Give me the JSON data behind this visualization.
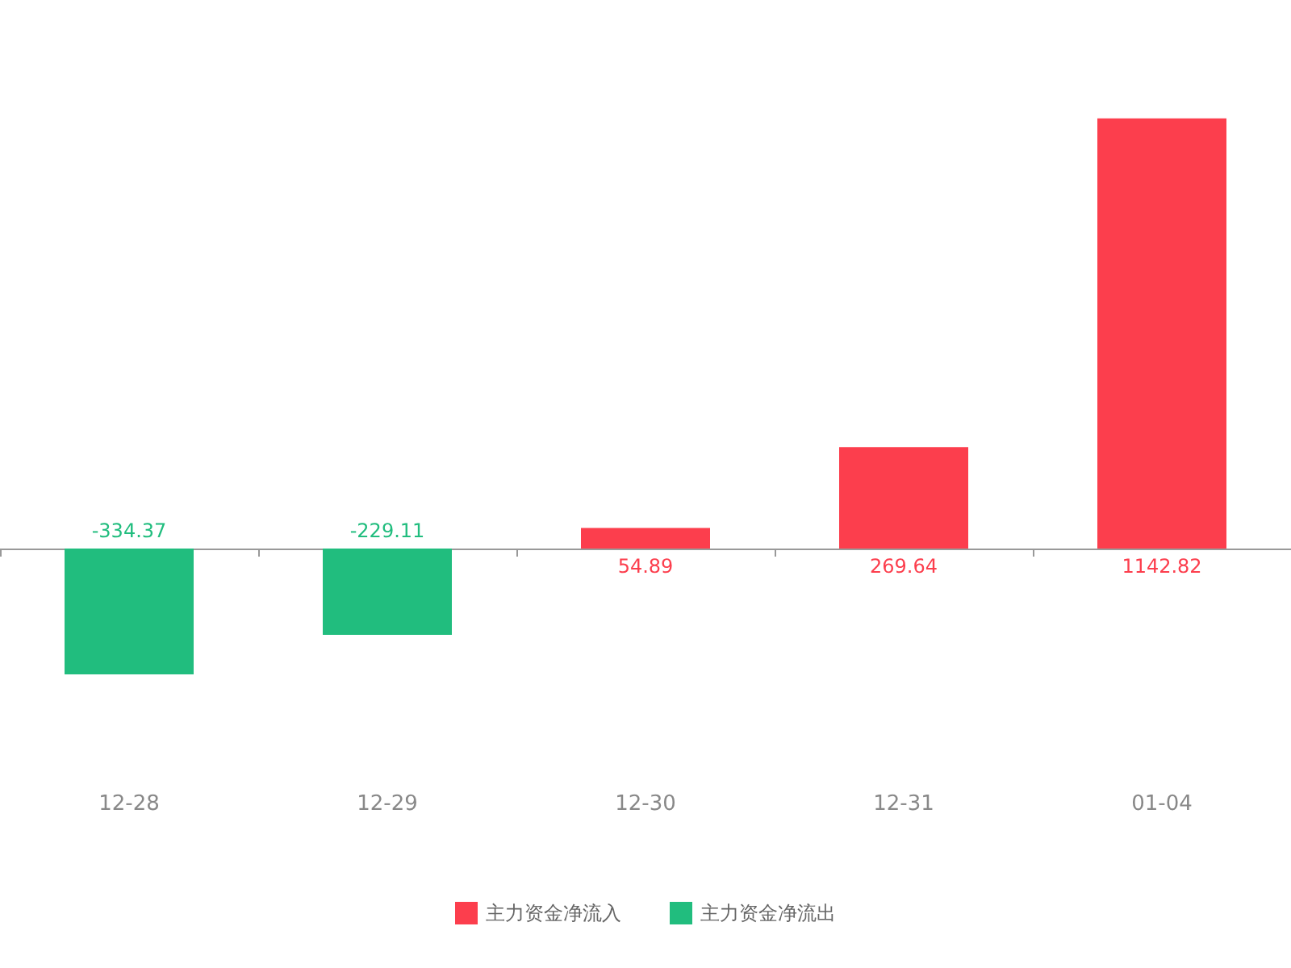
{
  "chart_data": {
    "type": "bar",
    "categories": [
      "12-28",
      "12-29",
      "12-30",
      "12-31",
      "01-04"
    ],
    "stacked": true,
    "data_labels": true,
    "legend": "bottom",
    "series": [
      {
        "name": "主力资金净流入",
        "color": "#fc3e4d",
        "values": [
          null,
          null,
          54.89,
          269.64,
          1142.82
        ]
      },
      {
        "name": "主力资金净流出",
        "color": "#21bd7e",
        "values": [
          -334.37,
          -229.11,
          null,
          null,
          null
        ]
      }
    ]
  }
}
